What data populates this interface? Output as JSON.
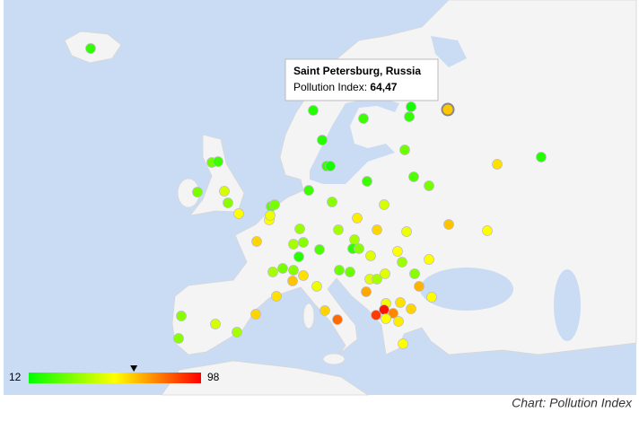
{
  "chart_data": {
    "type": "geo",
    "caption": "Chart: Pollution Index",
    "colorAxis": {
      "min": 12,
      "max": 98,
      "colors": [
        "#00ff00",
        "#ffff00",
        "#ff0000"
      ]
    },
    "values": [
      20,
      18,
      22,
      15,
      20,
      64.47,
      18,
      30,
      20,
      15,
      30,
      22,
      60,
      18,
      25,
      22,
      32,
      32,
      48,
      35,
      22,
      35,
      48,
      28,
      32,
      55,
      55,
      52,
      58,
      65,
      55,
      38,
      40,
      62,
      52,
      62,
      40,
      35,
      40,
      25,
      20,
      35,
      50,
      18,
      55,
      55,
      32,
      40,
      35,
      30,
      30,
      50,
      38,
      35,
      50,
      40,
      60,
      52,
      65,
      68,
      70,
      60,
      60,
      55,
      52,
      95,
      75,
      88,
      55,
      58,
      62,
      80,
      35,
      62,
      48,
      40,
      35,
      62,
      55
    ],
    "tooltip": {
      "title": "Saint Petersburg, Russia",
      "label": "Pollution Index:",
      "value": 64.47,
      "value_label": "64,47"
    }
  }
}
